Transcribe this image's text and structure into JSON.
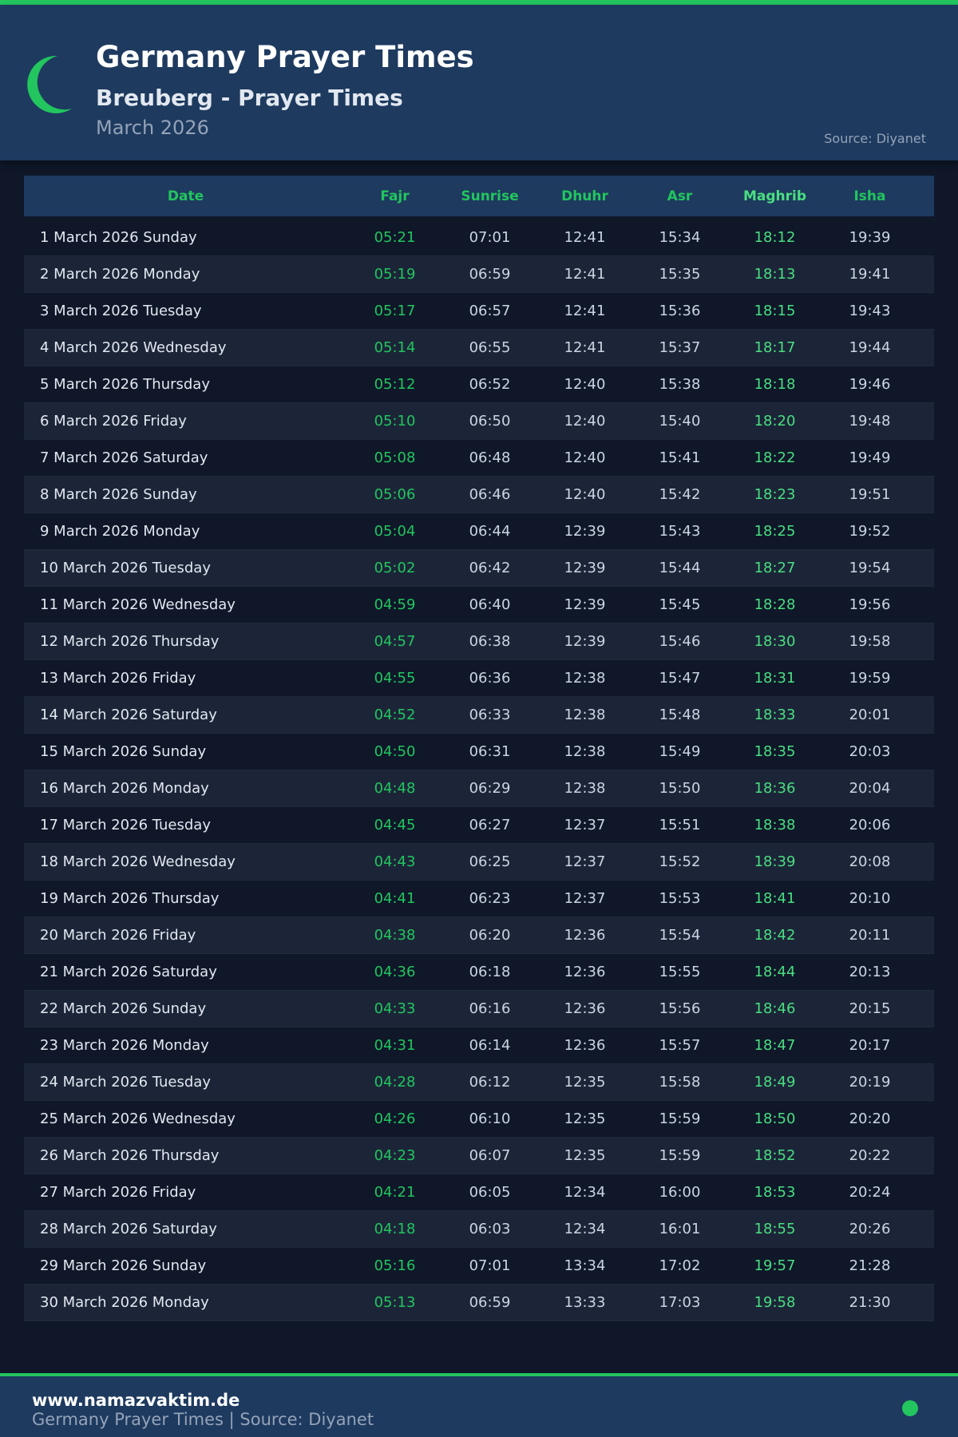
{
  "header": {
    "title": "Germany Prayer Times",
    "subtitle": "Breuberg - Prayer Times",
    "month": "March 2026",
    "source": "Source: Diyanet",
    "icon": "crescent-moon-icon"
  },
  "colors": {
    "accent": "#22c55e",
    "header_bg": "#1e3a5f",
    "page_bg": "#0f1729"
  },
  "table": {
    "columns": [
      "Date",
      "Fajr",
      "Sunrise",
      "Dhuhr",
      "Asr",
      "Maghrib",
      "Isha"
    ],
    "rows": [
      [
        "1 March 2026 Sunday",
        "05:21",
        "07:01",
        "12:41",
        "15:34",
        "18:12",
        "19:39"
      ],
      [
        "2 March 2026 Monday",
        "05:19",
        "06:59",
        "12:41",
        "15:35",
        "18:13",
        "19:41"
      ],
      [
        "3 March 2026 Tuesday",
        "05:17",
        "06:57",
        "12:41",
        "15:36",
        "18:15",
        "19:43"
      ],
      [
        "4 March 2026 Wednesday",
        "05:14",
        "06:55",
        "12:41",
        "15:37",
        "18:17",
        "19:44"
      ],
      [
        "5 March 2026 Thursday",
        "05:12",
        "06:52",
        "12:40",
        "15:38",
        "18:18",
        "19:46"
      ],
      [
        "6 March 2026 Friday",
        "05:10",
        "06:50",
        "12:40",
        "15:40",
        "18:20",
        "19:48"
      ],
      [
        "7 March 2026 Saturday",
        "05:08",
        "06:48",
        "12:40",
        "15:41",
        "18:22",
        "19:49"
      ],
      [
        "8 March 2026 Sunday",
        "05:06",
        "06:46",
        "12:40",
        "15:42",
        "18:23",
        "19:51"
      ],
      [
        "9 March 2026 Monday",
        "05:04",
        "06:44",
        "12:39",
        "15:43",
        "18:25",
        "19:52"
      ],
      [
        "10 March 2026 Tuesday",
        "05:02",
        "06:42",
        "12:39",
        "15:44",
        "18:27",
        "19:54"
      ],
      [
        "11 March 2026 Wednesday",
        "04:59",
        "06:40",
        "12:39",
        "15:45",
        "18:28",
        "19:56"
      ],
      [
        "12 March 2026 Thursday",
        "04:57",
        "06:38",
        "12:39",
        "15:46",
        "18:30",
        "19:58"
      ],
      [
        "13 March 2026 Friday",
        "04:55",
        "06:36",
        "12:38",
        "15:47",
        "18:31",
        "19:59"
      ],
      [
        "14 March 2026 Saturday",
        "04:52",
        "06:33",
        "12:38",
        "15:48",
        "18:33",
        "20:01"
      ],
      [
        "15 March 2026 Sunday",
        "04:50",
        "06:31",
        "12:38",
        "15:49",
        "18:35",
        "20:03"
      ],
      [
        "16 March 2026 Monday",
        "04:48",
        "06:29",
        "12:38",
        "15:50",
        "18:36",
        "20:04"
      ],
      [
        "17 March 2026 Tuesday",
        "04:45",
        "06:27",
        "12:37",
        "15:51",
        "18:38",
        "20:06"
      ],
      [
        "18 March 2026 Wednesday",
        "04:43",
        "06:25",
        "12:37",
        "15:52",
        "18:39",
        "20:08"
      ],
      [
        "19 March 2026 Thursday",
        "04:41",
        "06:23",
        "12:37",
        "15:53",
        "18:41",
        "20:10"
      ],
      [
        "20 March 2026 Friday",
        "04:38",
        "06:20",
        "12:36",
        "15:54",
        "18:42",
        "20:11"
      ],
      [
        "21 March 2026 Saturday",
        "04:36",
        "06:18",
        "12:36",
        "15:55",
        "18:44",
        "20:13"
      ],
      [
        "22 March 2026 Sunday",
        "04:33",
        "06:16",
        "12:36",
        "15:56",
        "18:46",
        "20:15"
      ],
      [
        "23 March 2026 Monday",
        "04:31",
        "06:14",
        "12:36",
        "15:57",
        "18:47",
        "20:17"
      ],
      [
        "24 March 2026 Tuesday",
        "04:28",
        "06:12",
        "12:35",
        "15:58",
        "18:49",
        "20:19"
      ],
      [
        "25 March 2026 Wednesday",
        "04:26",
        "06:10",
        "12:35",
        "15:59",
        "18:50",
        "20:20"
      ],
      [
        "26 March 2026 Thursday",
        "04:23",
        "06:07",
        "12:35",
        "15:59",
        "18:52",
        "20:22"
      ],
      [
        "27 March 2026 Friday",
        "04:21",
        "06:05",
        "12:34",
        "16:00",
        "18:53",
        "20:24"
      ],
      [
        "28 March 2026 Saturday",
        "04:18",
        "06:03",
        "12:34",
        "16:01",
        "18:55",
        "20:26"
      ],
      [
        "29 March 2026 Sunday",
        "05:16",
        "07:01",
        "13:34",
        "17:02",
        "19:57",
        "21:28"
      ],
      [
        "30 March 2026 Monday",
        "05:13",
        "06:59",
        "13:33",
        "17:03",
        "19:58",
        "21:30"
      ]
    ]
  },
  "footer": {
    "site": "www.namazvaktim.de",
    "tagline": "Germany Prayer Times | Source: Diyanet"
  }
}
